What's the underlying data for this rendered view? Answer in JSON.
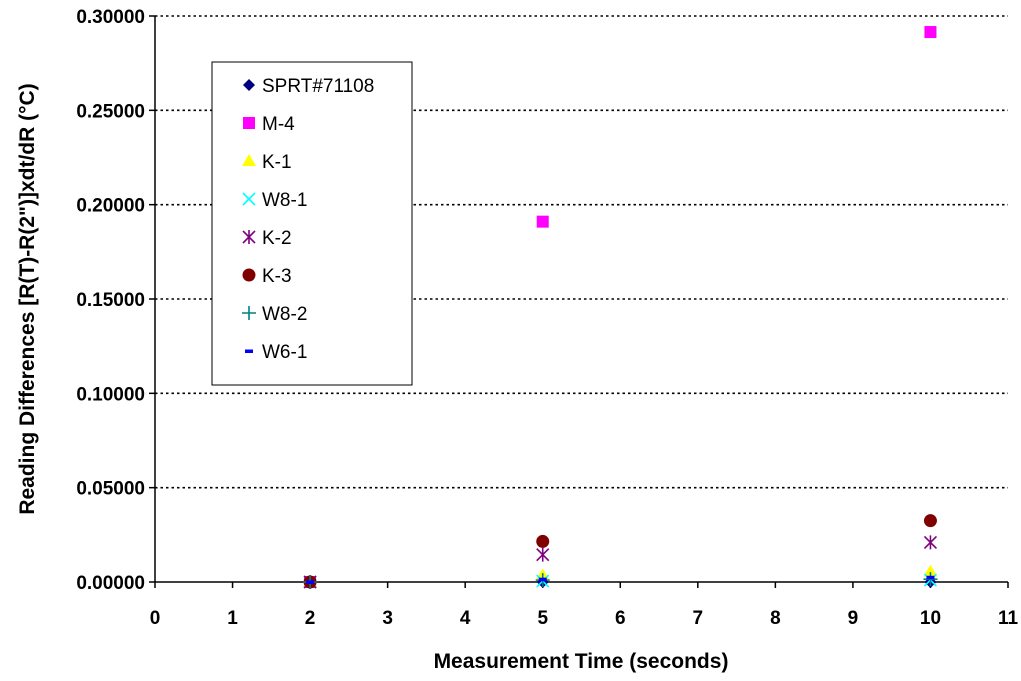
{
  "chart_data": {
    "type": "scatter",
    "title": "",
    "xlabel": "Measurement Time (seconds)",
    "ylabel": "Reading Differences [R(T)-R(2\")]xdt/dR (°C)",
    "xlim": [
      0,
      11
    ],
    "ylim": [
      0,
      0.3
    ],
    "x_ticks": [
      "0",
      "1",
      "2",
      "3",
      "4",
      "5",
      "6",
      "7",
      "8",
      "9",
      "10",
      "11"
    ],
    "y_ticks": [
      "0.00000",
      "0.05000",
      "0.10000",
      "0.15000",
      "0.20000",
      "0.25000",
      "0.30000"
    ],
    "grid": "horizontal dotted",
    "legend_position": "top-left inside",
    "series": [
      {
        "name": "SPRT#71108",
        "marker": "diamond",
        "color": "#000080",
        "points": [
          [
            2,
            0.0
          ],
          [
            5,
            0.0
          ],
          [
            10,
            0.0
          ]
        ]
      },
      {
        "name": "M-4",
        "marker": "square",
        "color": "#ff00ff",
        "points": [
          [
            2,
            0.0
          ],
          [
            5,
            0.191
          ],
          [
            10,
            0.2915
          ]
        ]
      },
      {
        "name": "K-1",
        "marker": "triangle",
        "color": "#ffff00",
        "points": [
          [
            2,
            0.0
          ],
          [
            5,
            0.0035
          ],
          [
            10,
            0.0055
          ]
        ]
      },
      {
        "name": "W8-1",
        "marker": "x",
        "color": "#00ffff",
        "points": [
          [
            2,
            0.0
          ],
          [
            5,
            0.0005
          ],
          [
            10,
            0.001
          ]
        ]
      },
      {
        "name": "K-2",
        "marker": "star",
        "color": "#800080",
        "points": [
          [
            2,
            0.0
          ],
          [
            5,
            0.0145
          ],
          [
            10,
            0.021
          ]
        ]
      },
      {
        "name": "K-3",
        "marker": "circle",
        "color": "#800000",
        "points": [
          [
            2,
            0.0
          ],
          [
            5,
            0.0215
          ],
          [
            10,
            0.0325
          ]
        ]
      },
      {
        "name": "W8-2",
        "marker": "plus",
        "color": "#008080",
        "points": [
          [
            2,
            0.0
          ],
          [
            5,
            0.001
          ],
          [
            10,
            0.0015
          ]
        ]
      },
      {
        "name": "W6-1",
        "marker": "dash",
        "color": "#0000ff",
        "points": [
          [
            2,
            0.0
          ],
          [
            5,
            0.0015
          ],
          [
            10,
            0.0025
          ]
        ]
      }
    ]
  }
}
